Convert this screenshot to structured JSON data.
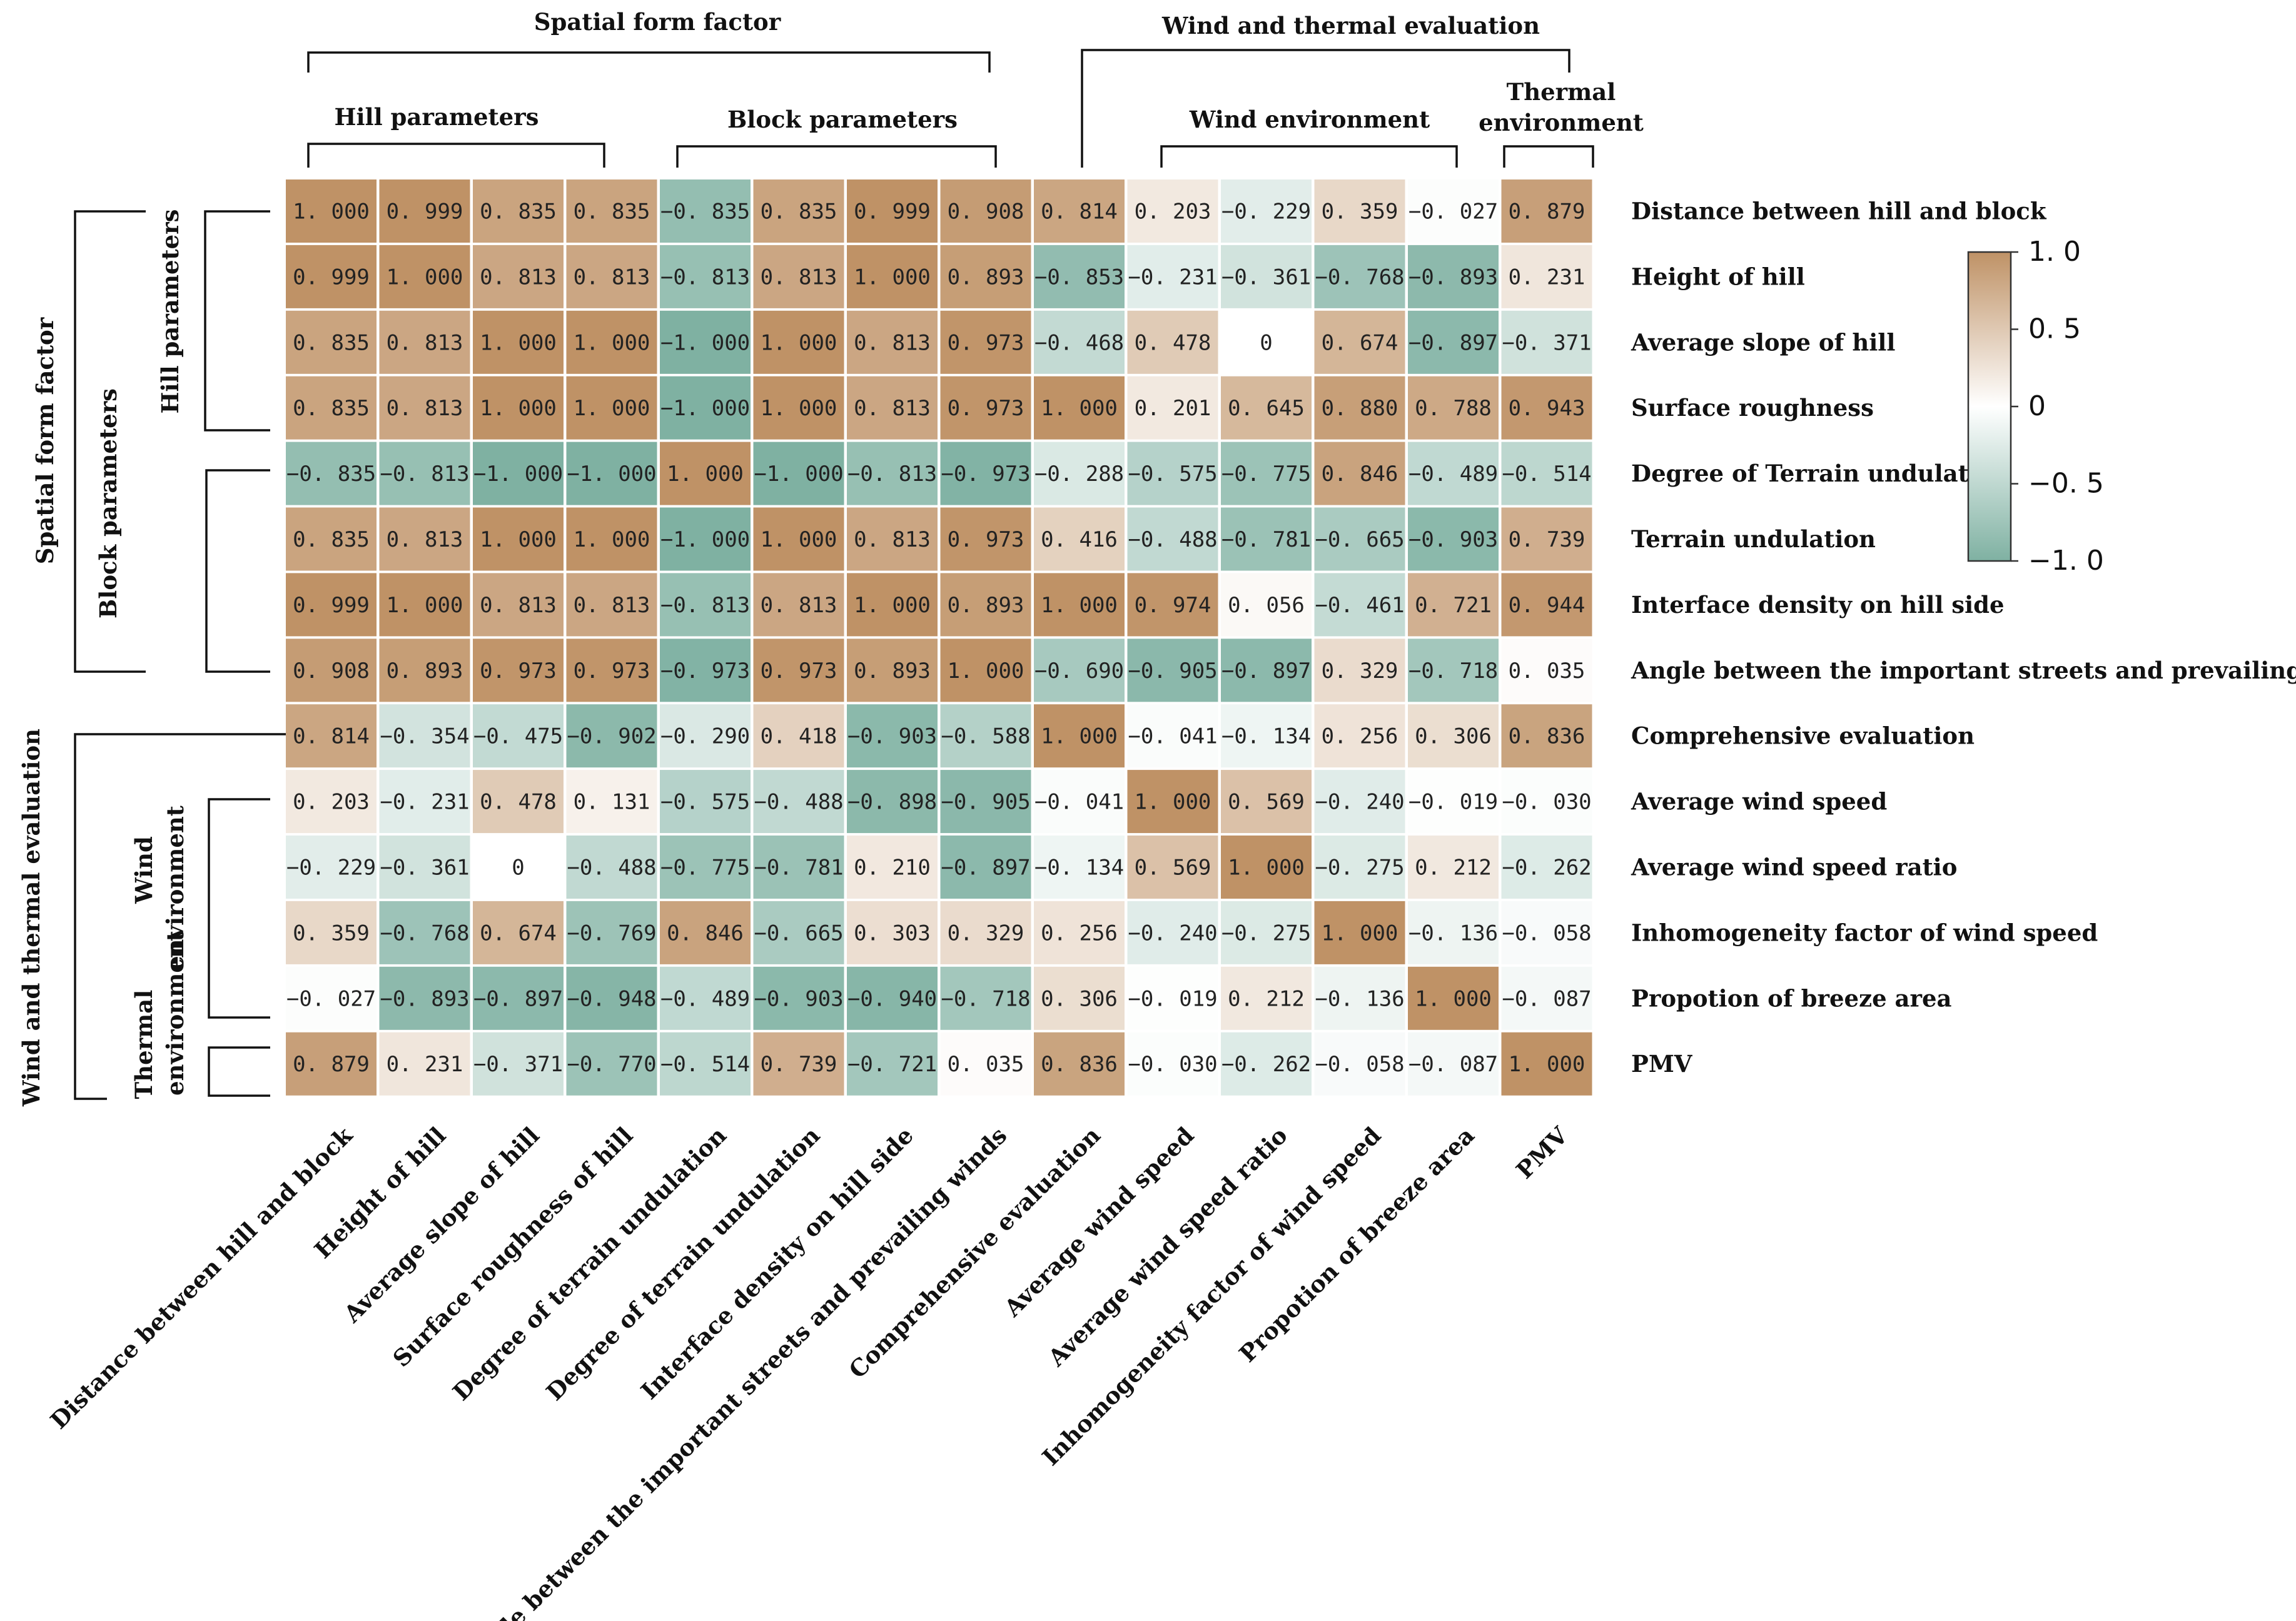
{
  "chart_data": {
    "type": "heatmap",
    "title": "",
    "rows": [
      "Distance between hill and block",
      "Height of hill",
      "Average slope of hill",
      "Surface roughness",
      "Degree of Terrain undulation",
      "Terrain undulation",
      "Interface density on hill side",
      "Angle between the important streets and prevailing winds",
      "Comprehensive evaluation",
      "Average wind speed",
      "Average wind speed ratio",
      "Inhomogeneity factor of wind speed",
      "Propotion of breeze area",
      "PMV"
    ],
    "columns": [
      "Distance between hill and block",
      "Height of hill",
      "Average slope of hill",
      "Surface roughness of hill",
      "Degree of terrain undulation",
      "Degree of terrain undulation",
      "Interface density on hill side",
      "Angle between the important streets and prevailing winds",
      "Comprehensive evaluation",
      "Average wind speed",
      "Average wind speed ratio",
      "Inhomogeneity factor of wind speed",
      "Propotion of breeze area",
      "PMV"
    ],
    "values": [
      [
        1.0,
        0.999,
        0.835,
        0.835,
        -0.835,
        0.835,
        0.999,
        0.908,
        0.814,
        0.203,
        -0.229,
        0.359,
        -0.027,
        0.879
      ],
      [
        0.999,
        1.0,
        0.813,
        0.813,
        -0.813,
        0.813,
        1.0,
        0.893,
        -0.853,
        -0.231,
        -0.361,
        -0.768,
        -0.893,
        0.231
      ],
      [
        0.835,
        0.813,
        1.0,
        1.0,
        -1.0,
        1.0,
        0.813,
        0.973,
        -0.468,
        0.478,
        0,
        0.674,
        -0.897,
        -0.371
      ],
      [
        0.835,
        0.813,
        1.0,
        1.0,
        -1.0,
        1.0,
        0.813,
        0.973,
        1.0,
        0.201,
        0.645,
        0.88,
        0.788,
        0.943
      ],
      [
        -0.835,
        -0.813,
        -1.0,
        -1.0,
        1.0,
        -1.0,
        -0.813,
        -0.973,
        -0.288,
        -0.575,
        -0.775,
        0.846,
        -0.489,
        -0.514
      ],
      [
        0.835,
        0.813,
        1.0,
        1.0,
        -1.0,
        1.0,
        0.813,
        0.973,
        0.416,
        -0.488,
        -0.781,
        -0.665,
        -0.903,
        0.739
      ],
      [
        0.999,
        1.0,
        0.813,
        0.813,
        -0.813,
        0.813,
        1.0,
        0.893,
        1.0,
        0.974,
        0.056,
        -0.461,
        0.721,
        0.944
      ],
      [
        0.908,
        0.893,
        0.973,
        0.973,
        -0.973,
        0.973,
        0.893,
        1.0,
        -0.69,
        -0.905,
        -0.897,
        0.329,
        -0.718,
        0.035
      ],
      [
        0.814,
        -0.354,
        -0.475,
        -0.902,
        -0.29,
        0.418,
        -0.903,
        -0.588,
        1.0,
        -0.041,
        -0.134,
        0.256,
        0.306,
        0.836
      ],
      [
        0.203,
        -0.231,
        0.478,
        0.131,
        -0.575,
        -0.488,
        -0.898,
        -0.905,
        -0.041,
        1.0,
        0.569,
        -0.24,
        -0.019,
        -0.03
      ],
      [
        -0.229,
        -0.361,
        0,
        -0.488,
        -0.775,
        -0.781,
        0.21,
        -0.897,
        -0.134,
        0.569,
        1.0,
        -0.275,
        0.212,
        -0.262
      ],
      [
        0.359,
        -0.768,
        0.674,
        -0.769,
        0.846,
        -0.665,
        0.303,
        0.329,
        0.256,
        -0.24,
        -0.275,
        1.0,
        -0.136,
        -0.058
      ],
      [
        -0.027,
        -0.893,
        -0.897,
        -0.948,
        -0.489,
        -0.903,
        -0.94,
        -0.718,
        0.306,
        -0.019,
        0.212,
        -0.136,
        1.0,
        -0.087
      ],
      [
        0.879,
        0.231,
        -0.371,
        -0.77,
        -0.514,
        0.739,
        -0.721,
        0.035,
        0.836,
        -0.03,
        -0.262,
        -0.058,
        -0.087,
        1.0
      ]
    ],
    "colorbar": {
      "range": [
        -1.0,
        1.0
      ],
      "ticks": [
        1.0,
        0.5,
        0,
        -0.5,
        -1.0
      ],
      "tick_labels": [
        "1. 0",
        "0. 5",
        "0",
        "−0. 5",
        "−1. 0"
      ],
      "colors": {
        "low": "#7fb1a2",
        "mid": "#ffffff",
        "high": "#bf9266"
      }
    },
    "top_groups": {
      "spatial_form_factor": "Spatial form factor",
      "wind_thermal": "Wind and thermal evaluation",
      "hill_parameters": "Hill  parameters",
      "block_parameters": "Block  parameters",
      "wind_environment": "Wind environment",
      "thermal_environment_line1": "Thermal",
      "thermal_environment_line2": "environment"
    },
    "left_groups": {
      "spatial_form_factor": "Spatial form factor",
      "wind_thermal": "Wind and thermal evaluation",
      "hill_parameters": "Hill parameters",
      "block_parameters": "Block  parameters",
      "wind_environment_line1": "Wind",
      "wind_environment_line2": "environment",
      "thermal_environment_line1": "Thermal",
      "thermal_environment_line2": "environment"
    }
  }
}
